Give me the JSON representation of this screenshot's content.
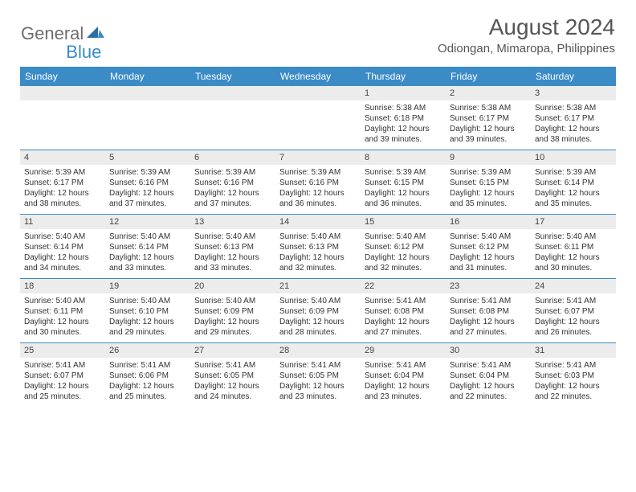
{
  "logo": {
    "part1": "General",
    "part2": "Blue"
  },
  "title": "August 2024",
  "location": "Odiongan, Mimaropa, Philippines",
  "colors": {
    "header_bg": "#3b8bc6",
    "header_text": "#ffffff",
    "daynum_bg": "#ececec",
    "text": "#333333",
    "logo_gray": "#6d6e71",
    "logo_blue": "#3b8bc6"
  },
  "dow": [
    "Sunday",
    "Monday",
    "Tuesday",
    "Wednesday",
    "Thursday",
    "Friday",
    "Saturday"
  ],
  "weeks": [
    [
      {
        "n": "",
        "sr": "",
        "ss": "",
        "dl1": "",
        "dl2": ""
      },
      {
        "n": "",
        "sr": "",
        "ss": "",
        "dl1": "",
        "dl2": ""
      },
      {
        "n": "",
        "sr": "",
        "ss": "",
        "dl1": "",
        "dl2": ""
      },
      {
        "n": "",
        "sr": "",
        "ss": "",
        "dl1": "",
        "dl2": ""
      },
      {
        "n": "1",
        "sr": "Sunrise: 5:38 AM",
        "ss": "Sunset: 6:18 PM",
        "dl1": "Daylight: 12 hours",
        "dl2": "and 39 minutes."
      },
      {
        "n": "2",
        "sr": "Sunrise: 5:38 AM",
        "ss": "Sunset: 6:17 PM",
        "dl1": "Daylight: 12 hours",
        "dl2": "and 39 minutes."
      },
      {
        "n": "3",
        "sr": "Sunrise: 5:38 AM",
        "ss": "Sunset: 6:17 PM",
        "dl1": "Daylight: 12 hours",
        "dl2": "and 38 minutes."
      }
    ],
    [
      {
        "n": "4",
        "sr": "Sunrise: 5:39 AM",
        "ss": "Sunset: 6:17 PM",
        "dl1": "Daylight: 12 hours",
        "dl2": "and 38 minutes."
      },
      {
        "n": "5",
        "sr": "Sunrise: 5:39 AM",
        "ss": "Sunset: 6:16 PM",
        "dl1": "Daylight: 12 hours",
        "dl2": "and 37 minutes."
      },
      {
        "n": "6",
        "sr": "Sunrise: 5:39 AM",
        "ss": "Sunset: 6:16 PM",
        "dl1": "Daylight: 12 hours",
        "dl2": "and 37 minutes."
      },
      {
        "n": "7",
        "sr": "Sunrise: 5:39 AM",
        "ss": "Sunset: 6:16 PM",
        "dl1": "Daylight: 12 hours",
        "dl2": "and 36 minutes."
      },
      {
        "n": "8",
        "sr": "Sunrise: 5:39 AM",
        "ss": "Sunset: 6:15 PM",
        "dl1": "Daylight: 12 hours",
        "dl2": "and 36 minutes."
      },
      {
        "n": "9",
        "sr": "Sunrise: 5:39 AM",
        "ss": "Sunset: 6:15 PM",
        "dl1": "Daylight: 12 hours",
        "dl2": "and 35 minutes."
      },
      {
        "n": "10",
        "sr": "Sunrise: 5:39 AM",
        "ss": "Sunset: 6:14 PM",
        "dl1": "Daylight: 12 hours",
        "dl2": "and 35 minutes."
      }
    ],
    [
      {
        "n": "11",
        "sr": "Sunrise: 5:40 AM",
        "ss": "Sunset: 6:14 PM",
        "dl1": "Daylight: 12 hours",
        "dl2": "and 34 minutes."
      },
      {
        "n": "12",
        "sr": "Sunrise: 5:40 AM",
        "ss": "Sunset: 6:14 PM",
        "dl1": "Daylight: 12 hours",
        "dl2": "and 33 minutes."
      },
      {
        "n": "13",
        "sr": "Sunrise: 5:40 AM",
        "ss": "Sunset: 6:13 PM",
        "dl1": "Daylight: 12 hours",
        "dl2": "and 33 minutes."
      },
      {
        "n": "14",
        "sr": "Sunrise: 5:40 AM",
        "ss": "Sunset: 6:13 PM",
        "dl1": "Daylight: 12 hours",
        "dl2": "and 32 minutes."
      },
      {
        "n": "15",
        "sr": "Sunrise: 5:40 AM",
        "ss": "Sunset: 6:12 PM",
        "dl1": "Daylight: 12 hours",
        "dl2": "and 32 minutes."
      },
      {
        "n": "16",
        "sr": "Sunrise: 5:40 AM",
        "ss": "Sunset: 6:12 PM",
        "dl1": "Daylight: 12 hours",
        "dl2": "and 31 minutes."
      },
      {
        "n": "17",
        "sr": "Sunrise: 5:40 AM",
        "ss": "Sunset: 6:11 PM",
        "dl1": "Daylight: 12 hours",
        "dl2": "and 30 minutes."
      }
    ],
    [
      {
        "n": "18",
        "sr": "Sunrise: 5:40 AM",
        "ss": "Sunset: 6:11 PM",
        "dl1": "Daylight: 12 hours",
        "dl2": "and 30 minutes."
      },
      {
        "n": "19",
        "sr": "Sunrise: 5:40 AM",
        "ss": "Sunset: 6:10 PM",
        "dl1": "Daylight: 12 hours",
        "dl2": "and 29 minutes."
      },
      {
        "n": "20",
        "sr": "Sunrise: 5:40 AM",
        "ss": "Sunset: 6:09 PM",
        "dl1": "Daylight: 12 hours",
        "dl2": "and 29 minutes."
      },
      {
        "n": "21",
        "sr": "Sunrise: 5:40 AM",
        "ss": "Sunset: 6:09 PM",
        "dl1": "Daylight: 12 hours",
        "dl2": "and 28 minutes."
      },
      {
        "n": "22",
        "sr": "Sunrise: 5:41 AM",
        "ss": "Sunset: 6:08 PM",
        "dl1": "Daylight: 12 hours",
        "dl2": "and 27 minutes."
      },
      {
        "n": "23",
        "sr": "Sunrise: 5:41 AM",
        "ss": "Sunset: 6:08 PM",
        "dl1": "Daylight: 12 hours",
        "dl2": "and 27 minutes."
      },
      {
        "n": "24",
        "sr": "Sunrise: 5:41 AM",
        "ss": "Sunset: 6:07 PM",
        "dl1": "Daylight: 12 hours",
        "dl2": "and 26 minutes."
      }
    ],
    [
      {
        "n": "25",
        "sr": "Sunrise: 5:41 AM",
        "ss": "Sunset: 6:07 PM",
        "dl1": "Daylight: 12 hours",
        "dl2": "and 25 minutes."
      },
      {
        "n": "26",
        "sr": "Sunrise: 5:41 AM",
        "ss": "Sunset: 6:06 PM",
        "dl1": "Daylight: 12 hours",
        "dl2": "and 25 minutes."
      },
      {
        "n": "27",
        "sr": "Sunrise: 5:41 AM",
        "ss": "Sunset: 6:05 PM",
        "dl1": "Daylight: 12 hours",
        "dl2": "and 24 minutes."
      },
      {
        "n": "28",
        "sr": "Sunrise: 5:41 AM",
        "ss": "Sunset: 6:05 PM",
        "dl1": "Daylight: 12 hours",
        "dl2": "and 23 minutes."
      },
      {
        "n": "29",
        "sr": "Sunrise: 5:41 AM",
        "ss": "Sunset: 6:04 PM",
        "dl1": "Daylight: 12 hours",
        "dl2": "and 23 minutes."
      },
      {
        "n": "30",
        "sr": "Sunrise: 5:41 AM",
        "ss": "Sunset: 6:04 PM",
        "dl1": "Daylight: 12 hours",
        "dl2": "and 22 minutes."
      },
      {
        "n": "31",
        "sr": "Sunrise: 5:41 AM",
        "ss": "Sunset: 6:03 PM",
        "dl1": "Daylight: 12 hours",
        "dl2": "and 22 minutes."
      }
    ]
  ]
}
